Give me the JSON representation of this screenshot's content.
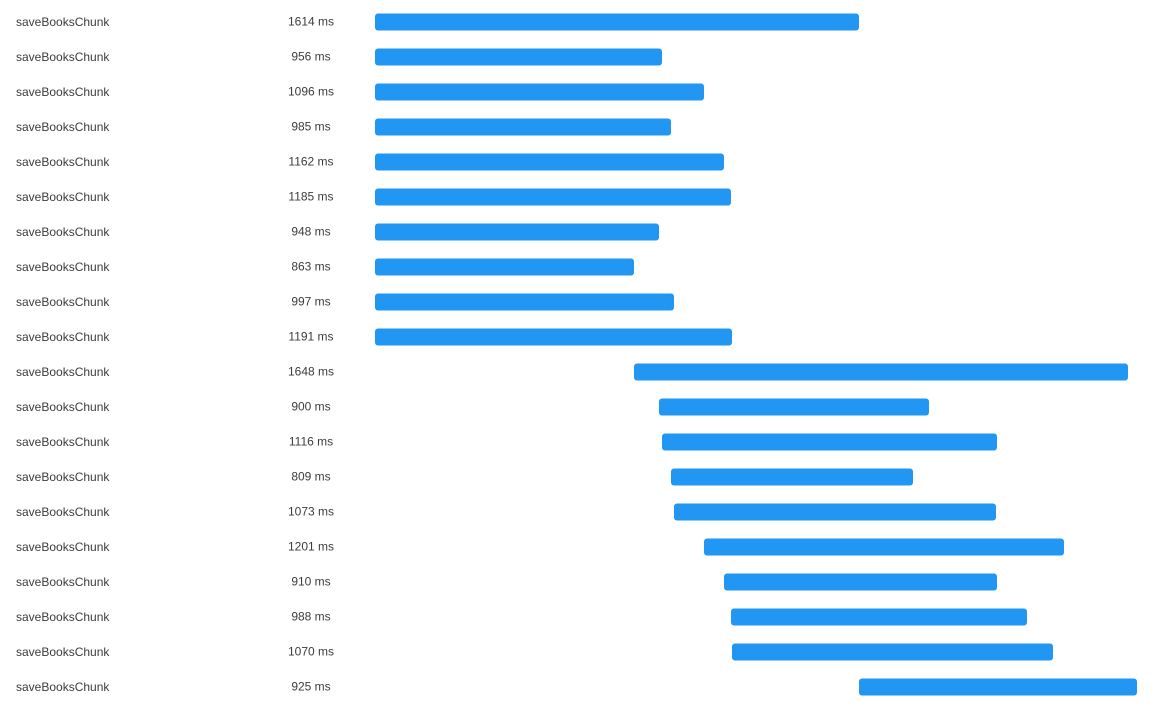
{
  "chart_data": {
    "type": "bar",
    "title": "",
    "xlabel": "",
    "ylabel": "",
    "bar_color": "#2196F3",
    "xlim": [
      0,
      2900
    ],
    "unit": "ms",
    "rows": [
      {
        "label": "saveBooksChunk",
        "start": 0,
        "duration": 1614,
        "duration_text": "1614 ms"
      },
      {
        "label": "saveBooksChunk",
        "start": 0,
        "duration": 956,
        "duration_text": "956 ms"
      },
      {
        "label": "saveBooksChunk",
        "start": 0,
        "duration": 1096,
        "duration_text": "1096 ms"
      },
      {
        "label": "saveBooksChunk",
        "start": 0,
        "duration": 985,
        "duration_text": "985 ms"
      },
      {
        "label": "saveBooksChunk",
        "start": 0,
        "duration": 1162,
        "duration_text": "1162 ms"
      },
      {
        "label": "saveBooksChunk",
        "start": 0,
        "duration": 1185,
        "duration_text": "1185 ms"
      },
      {
        "label": "saveBooksChunk",
        "start": 0,
        "duration": 948,
        "duration_text": "948 ms"
      },
      {
        "label": "saveBooksChunk",
        "start": 0,
        "duration": 863,
        "duration_text": "863 ms"
      },
      {
        "label": "saveBooksChunk",
        "start": 0,
        "duration": 997,
        "duration_text": "997 ms"
      },
      {
        "label": "saveBooksChunk",
        "start": 0,
        "duration": 1191,
        "duration_text": "1191 ms"
      },
      {
        "label": "saveBooksChunk",
        "start": 863,
        "duration": 1648,
        "duration_text": "1648 ms"
      },
      {
        "label": "saveBooksChunk",
        "start": 948,
        "duration": 900,
        "duration_text": "900 ms"
      },
      {
        "label": "saveBooksChunk",
        "start": 956,
        "duration": 1116,
        "duration_text": "1116 ms"
      },
      {
        "label": "saveBooksChunk",
        "start": 985,
        "duration": 809,
        "duration_text": "809 ms"
      },
      {
        "label": "saveBooksChunk",
        "start": 997,
        "duration": 1073,
        "duration_text": "1073 ms"
      },
      {
        "label": "saveBooksChunk",
        "start": 1096,
        "duration": 1201,
        "duration_text": "1201 ms"
      },
      {
        "label": "saveBooksChunk",
        "start": 1162,
        "duration": 910,
        "duration_text": "910 ms"
      },
      {
        "label": "saveBooksChunk",
        "start": 1185,
        "duration": 988,
        "duration_text": "988 ms"
      },
      {
        "label": "saveBooksChunk",
        "start": 1191,
        "duration": 1070,
        "duration_text": "1070 ms"
      },
      {
        "label": "saveBooksChunk",
        "start": 1614,
        "duration": 925,
        "duration_text": "925 ms"
      }
    ]
  }
}
